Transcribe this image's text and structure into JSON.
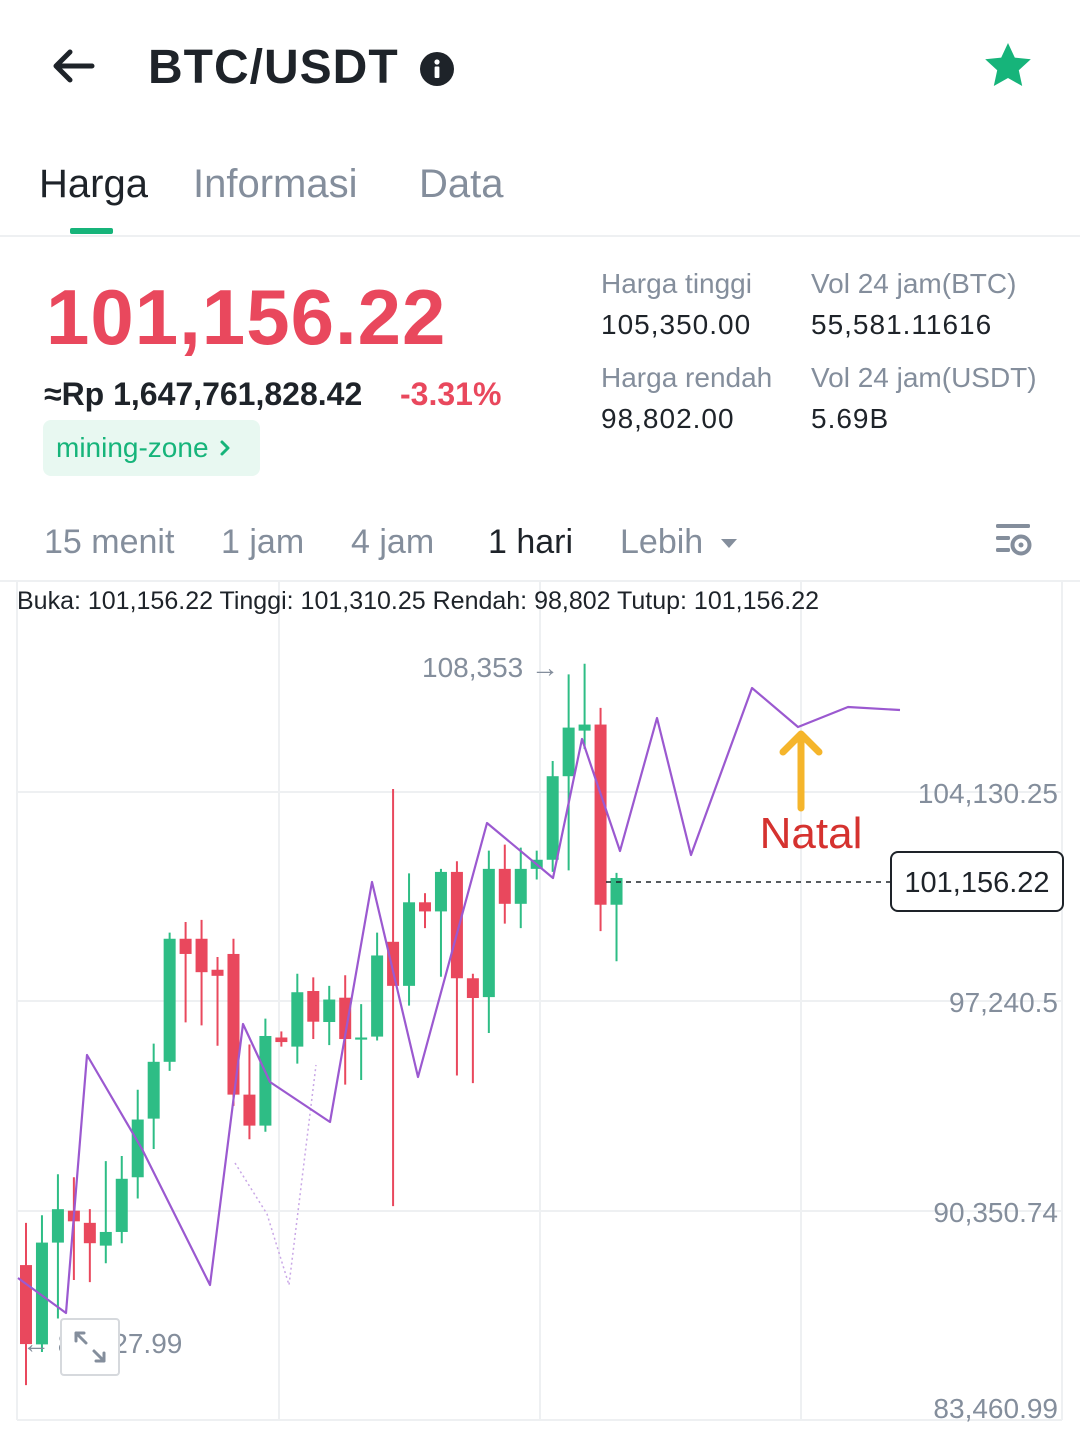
{
  "header": {
    "title": "BTC/USDT",
    "back_icon": "arrow-left-icon",
    "info_icon": "info-icon",
    "favorite_icon": "star-icon",
    "favorite_color": "#16b47a"
  },
  "tabs": [
    {
      "label": "Harga",
      "active": true
    },
    {
      "label": "Informasi",
      "active": false
    },
    {
      "label": "Data",
      "active": false
    }
  ],
  "price": {
    "last": "101,156.22",
    "fiat": "≈Rp 1,647,761,828.42",
    "change": "-3.31%",
    "color": "#e9485d",
    "tag": "mining-zone",
    "tag_color": "#16b47a"
  },
  "stats": {
    "high_label": "Harga tinggi",
    "high_value": "105,350.00",
    "low_label": "Harga rendah",
    "low_value": "98,802.00",
    "vol_btc_label": "Vol 24 jam(BTC)",
    "vol_btc_value": "55,581.11616",
    "vol_usdt_label": "Vol 24 jam(USDT)",
    "vol_usdt_value": "5.69B"
  },
  "timeframes": [
    {
      "label": "15 menit",
      "active": false
    },
    {
      "label": "1 jam",
      "active": false
    },
    {
      "label": "4 jam",
      "active": false
    },
    {
      "label": "1 hari",
      "active": true
    },
    {
      "label": "Lebih",
      "active": false
    }
  ],
  "ohlc": "Buka: 101,156.22 Tinggi: 101,310.25 Rendah: 98,802 Tutup: 101,156.22",
  "chart_data": {
    "type": "candlestick",
    "y_ticks": [
      "104,130.25",
      "97,240.5",
      "90,350.74",
      "83,460.99"
    ],
    "ylim": [
      83460.99,
      110500
    ],
    "max_label": "108,353",
    "min_label": "← 8_,_27.99",
    "current_price_label": "101,156.22",
    "annotation": "Natal",
    "annotation_color": "#d5322f",
    "arrow_color": "#f5b52b",
    "line_color": "#9b59d0",
    "up_color": "#2ebd85",
    "down_color": "#e9485d",
    "candles": [
      {
        "o": 88560,
        "c": 85960,
        "h": 89950,
        "l": 84610
      },
      {
        "o": 85950,
        "c": 89300,
        "h": 90200,
        "l": 85700
      },
      {
        "o": 89300,
        "c": 90400,
        "h": 91550,
        "l": 86800
      },
      {
        "o": 90350,
        "c": 90000,
        "h": 91450,
        "l": 88070
      },
      {
        "o": 89950,
        "c": 89280,
        "h": 90400,
        "l": 88000
      },
      {
        "o": 89200,
        "c": 89650,
        "h": 91980,
        "l": 88620
      },
      {
        "o": 89650,
        "c": 91400,
        "h": 92150,
        "l": 89280
      },
      {
        "o": 91450,
        "c": 93350,
        "h": 94330,
        "l": 90750
      },
      {
        "o": 93380,
        "c": 95250,
        "h": 95850,
        "l": 92380
      },
      {
        "o": 95250,
        "c": 99300,
        "h": 99500,
        "l": 94950
      },
      {
        "o": 99300,
        "c": 98800,
        "h": 99850,
        "l": 96550
      },
      {
        "o": 99300,
        "c": 98200,
        "h": 99920,
        "l": 96450
      },
      {
        "o": 98280,
        "c": 98080,
        "h": 98700,
        "l": 95780
      },
      {
        "o": 98800,
        "c": 94170,
        "h": 99300,
        "l": 93800
      },
      {
        "o": 94170,
        "c": 93150,
        "h": 95820,
        "l": 92700
      },
      {
        "o": 93150,
        "c": 96100,
        "h": 96670,
        "l": 92950
      },
      {
        "o": 96050,
        "c": 95900,
        "h": 96250,
        "l": 95750
      },
      {
        "o": 95750,
        "c": 97540,
        "h": 98150,
        "l": 95190
      },
      {
        "o": 97580,
        "c": 96570,
        "h": 98030,
        "l": 96000
      },
      {
        "o": 96560,
        "c": 97300,
        "h": 97750,
        "l": 95800
      },
      {
        "o": 97360,
        "c": 96000,
        "h": 98100,
        "l": 94500
      },
      {
        "o": 95980,
        "c": 96050,
        "h": 97150,
        "l": 94650
      },
      {
        "o": 96080,
        "c": 98750,
        "h": 99500,
        "l": 95950
      },
      {
        "o": 99200,
        "c": 97750,
        "h": 104230,
        "l": 90500
      },
      {
        "o": 97750,
        "c": 100500,
        "h": 101450,
        "l": 97100
      },
      {
        "o": 100500,
        "c": 100200,
        "h": 100800,
        "l": 99650
      },
      {
        "o": 100200,
        "c": 101500,
        "h": 101600,
        "l": 98050
      },
      {
        "o": 101500,
        "c": 98000,
        "h": 101850,
        "l": 94800
      },
      {
        "o": 98000,
        "c": 97350,
        "h": 98150,
        "l": 94550
      },
      {
        "o": 97380,
        "c": 101600,
        "h": 102200,
        "l": 96200
      },
      {
        "o": 101600,
        "c": 100450,
        "h": 102400,
        "l": 99800
      },
      {
        "o": 100450,
        "c": 101600,
        "h": 102300,
        "l": 99650
      },
      {
        "o": 101600,
        "c": 101900,
        "h": 102200,
        "l": 101250
      },
      {
        "o": 101900,
        "c": 104650,
        "h": 105150,
        "l": 101500
      },
      {
        "o": 104650,
        "c": 106250,
        "h": 108000,
        "l": 101550
      },
      {
        "o": 106150,
        "c": 106350,
        "h": 108353,
        "l": 105550
      },
      {
        "o": 106350,
        "c": 100420,
        "h": 106900,
        "l": 99550
      },
      {
        "o": 100420,
        "c": 101300,
        "h": 101470,
        "l": 98560
      }
    ],
    "overlay_points": [
      [
        18,
        1278
      ],
      [
        66,
        1313
      ],
      [
        87,
        1055
      ],
      [
        142,
        1149
      ],
      [
        210,
        1285
      ],
      [
        243,
        1024
      ],
      [
        270,
        1082
      ],
      [
        330,
        1122
      ],
      [
        372,
        882
      ],
      [
        418,
        1077
      ],
      [
        487,
        823
      ],
      [
        553,
        878
      ],
      [
        582,
        739
      ],
      [
        620,
        851
      ],
      [
        657,
        718
      ],
      [
        691,
        855
      ],
      [
        752,
        688
      ],
      [
        798,
        727
      ],
      [
        848,
        707
      ],
      [
        900,
        710
      ]
    ],
    "overlay_faint_points": [
      [
        235,
        1163
      ],
      [
        267,
        1214
      ],
      [
        289,
        1285
      ],
      [
        316,
        1065
      ]
    ]
  }
}
